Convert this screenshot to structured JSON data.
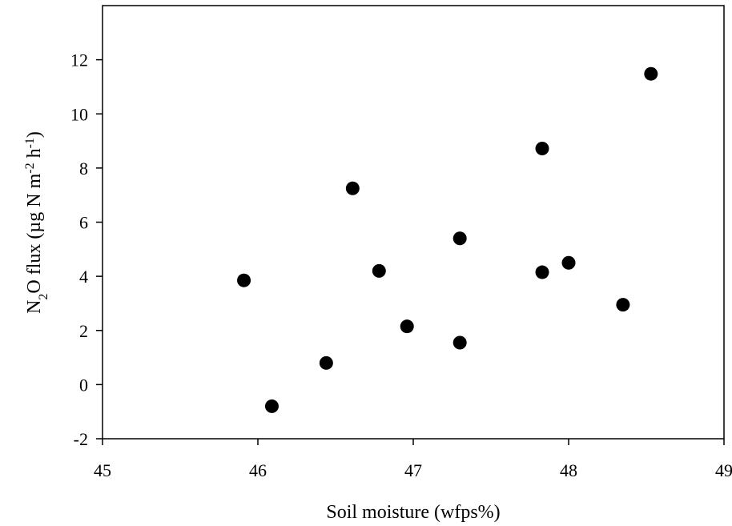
{
  "chart_data": {
    "type": "scatter",
    "xlabel": "Soil moisture (wfps%)",
    "ylabel": {
      "parts": [
        {
          "text": "N",
          "shift": "base"
        },
        {
          "text": "2",
          "shift": "sub"
        },
        {
          "text": "O flux (µg N m",
          "shift": "base"
        },
        {
          "text": "-2",
          "shift": "super"
        },
        {
          "text": " h",
          "shift": "base"
        },
        {
          "text": "-1",
          "shift": "super"
        },
        {
          "text": ")",
          "shift": "base"
        }
      ]
    },
    "xlim": [
      45,
      49
    ],
    "ylim": [
      -2,
      14
    ],
    "xticks": [
      45,
      46,
      47,
      48,
      49
    ],
    "yticks": [
      -2,
      0,
      2,
      4,
      6,
      8,
      10,
      12
    ],
    "grid": false,
    "legend": "none",
    "marker_color": "#000000",
    "points": [
      {
        "x": 45.91,
        "y": 3.85
      },
      {
        "x": 46.09,
        "y": -0.8
      },
      {
        "x": 46.44,
        "y": 0.8
      },
      {
        "x": 46.61,
        "y": 7.25
      },
      {
        "x": 46.78,
        "y": 4.2
      },
      {
        "x": 46.96,
        "y": 2.15
      },
      {
        "x": 47.3,
        "y": 5.4
      },
      {
        "x": 47.3,
        "y": 1.55
      },
      {
        "x": 47.83,
        "y": 8.72
      },
      {
        "x": 47.83,
        "y": 4.15
      },
      {
        "x": 48.0,
        "y": 4.5
      },
      {
        "x": 48.35,
        "y": 2.95
      },
      {
        "x": 48.53,
        "y": 11.48
      }
    ]
  }
}
